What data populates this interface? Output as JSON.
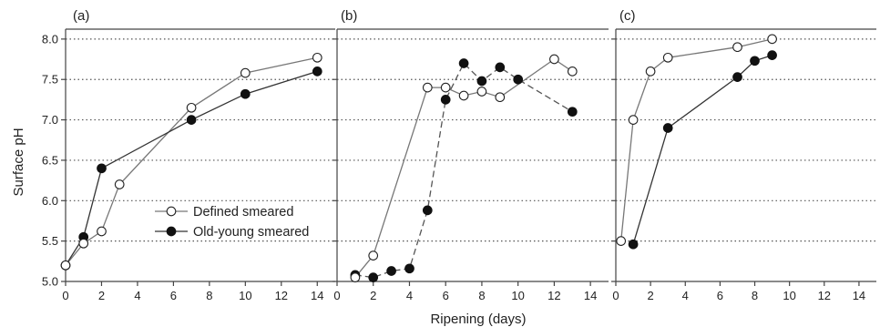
{
  "chart_data": [
    {
      "type": "line",
      "panel_label": "(a)",
      "ylabel": "Surface pH",
      "xlim": [
        0,
        15
      ],
      "ylim": [
        5.0,
        8.1
      ],
      "x_ticks": [
        0,
        2,
        4,
        6,
        8,
        10,
        12,
        14
      ],
      "y_ticks": [
        5.0,
        5.5,
        6.0,
        6.5,
        7.0,
        7.5,
        8.0
      ],
      "y_tick_labels": [
        "5.0",
        "5.5",
        "6.0",
        "6.5",
        "7.0",
        "7.5",
        "8.0"
      ],
      "grid": "horizontal-dotted",
      "legend": {
        "placement": "lower-right",
        "entries": [
          "Defined smeared",
          "Old-young smeared"
        ]
      },
      "series": [
        {
          "name": "Defined smeared",
          "marker": "open-circle",
          "line_style": "solid",
          "points": [
            [
              0,
              5.2
            ],
            [
              1,
              5.47
            ],
            [
              2,
              5.62
            ],
            [
              3,
              6.2
            ],
            [
              7,
              7.15
            ],
            [
              10,
              7.58
            ],
            [
              14,
              7.77
            ]
          ]
        },
        {
          "name": "Old-young smeared",
          "marker": "filled-circle",
          "line_style": "solid",
          "points": [
            [
              0,
              5.2
            ],
            [
              1,
              5.55
            ],
            [
              2,
              6.4
            ],
            [
              7,
              7.0
            ],
            [
              10,
              7.32
            ],
            [
              14,
              7.6
            ]
          ]
        }
      ]
    },
    {
      "type": "line",
      "panel_label": "(b)",
      "xlabel": "Ripening (days)",
      "xlim": [
        0,
        15
      ],
      "ylim": [
        5.0,
        8.1
      ],
      "x_ticks": [
        0,
        2,
        4,
        6,
        8,
        10,
        12,
        14
      ],
      "grid": "horizontal-dotted",
      "series": [
        {
          "name": "Defined smeared",
          "marker": "open-circle",
          "line_style": "solid",
          "points": [
            [
              1,
              5.05
            ],
            [
              2,
              5.32
            ],
            [
              5,
              7.4
            ],
            [
              6,
              7.4
            ],
            [
              7,
              7.3
            ],
            [
              8,
              7.35
            ],
            [
              9,
              7.28
            ],
            [
              12,
              7.75
            ],
            [
              13,
              7.6
            ]
          ]
        },
        {
          "name": "Old-young smeared",
          "marker": "filled-circle",
          "line_style": "dashed",
          "points": [
            [
              1,
              5.08
            ],
            [
              2,
              5.05
            ],
            [
              3,
              5.13
            ],
            [
              4,
              5.16
            ],
            [
              5,
              5.88
            ],
            [
              6,
              7.25
            ],
            [
              7,
              7.7
            ],
            [
              8,
              7.48
            ],
            [
              9,
              7.65
            ],
            [
              10,
              7.5
            ],
            [
              13,
              7.1
            ]
          ]
        }
      ]
    },
    {
      "type": "line",
      "panel_label": "(c)",
      "xlim": [
        0,
        15
      ],
      "ylim": [
        5.0,
        8.1
      ],
      "x_ticks": [
        0,
        2,
        4,
        6,
        8,
        10,
        12,
        14
      ],
      "grid": "horizontal-dotted",
      "series": [
        {
          "name": "Defined smeared",
          "marker": "open-circle",
          "line_style": "solid",
          "points": [
            [
              0.3,
              5.5
            ],
            [
              1,
              7.0
            ],
            [
              2,
              7.6
            ],
            [
              3,
              7.77
            ],
            [
              7,
              7.9
            ],
            [
              9,
              8.0
            ]
          ]
        },
        {
          "name": "Old-young smeared",
          "marker": "filled-circle",
          "line_style": "solid",
          "points": [
            [
              1,
              5.46
            ],
            [
              3,
              6.9
            ],
            [
              7,
              7.53
            ],
            [
              8,
              7.73
            ],
            [
              9,
              7.8
            ]
          ]
        }
      ]
    }
  ]
}
